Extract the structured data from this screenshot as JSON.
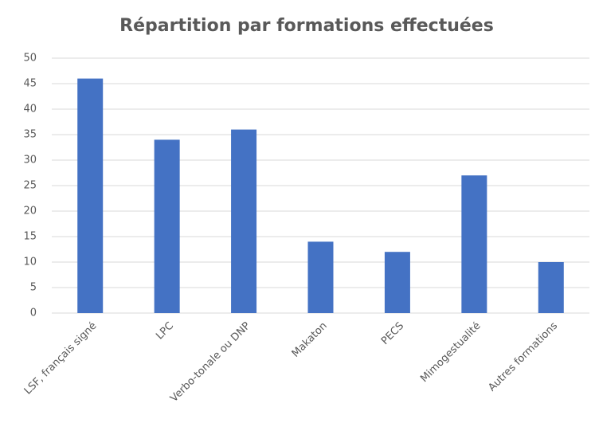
{
  "chart_data": {
    "type": "bar",
    "title": "Répartition par formations effectuées",
    "categories": [
      "LSF, français signé",
      "LPC",
      "Verbo-tonale ou DNP",
      "Makaton",
      "PECS",
      "Mimogestualité",
      "Autres formations"
    ],
    "values": [
      46,
      34,
      36,
      14,
      12,
      27,
      10
    ],
    "color": "#4472c4",
    "ylim": [
      0,
      50
    ],
    "yticks": [
      0,
      5,
      10,
      15,
      20,
      25,
      30,
      35,
      40,
      45,
      50
    ],
    "grid": true
  }
}
